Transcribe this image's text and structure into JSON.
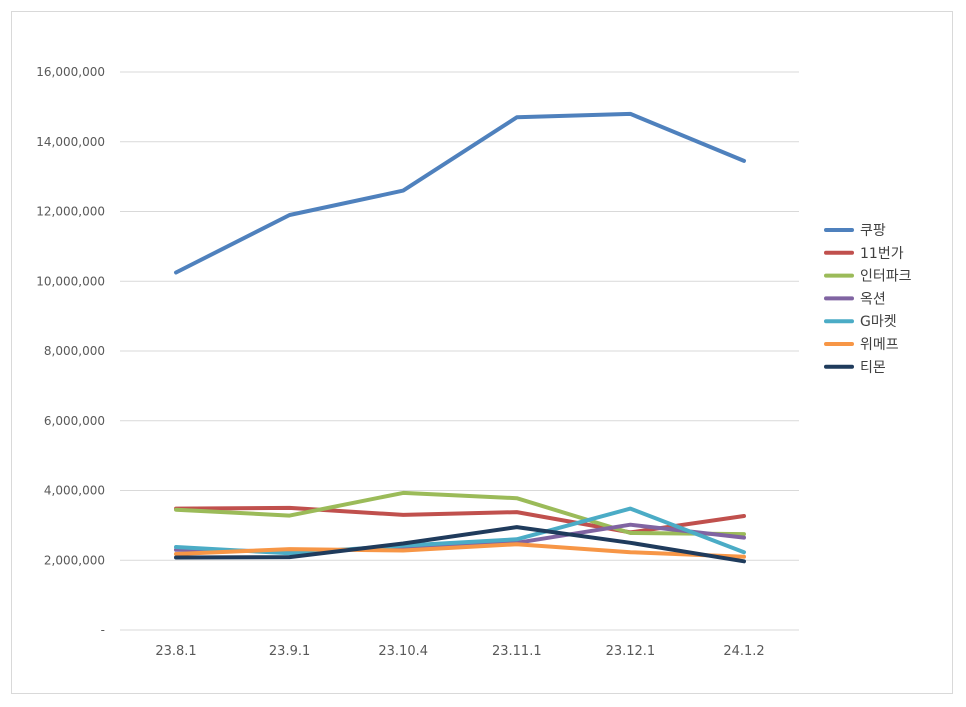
{
  "chart_data": {
    "type": "line",
    "categories": [
      "23.8.1",
      "23.9.1",
      "23.10.4",
      "23.11.1",
      "23.12.1",
      "24.1.2"
    ],
    "ylim": [
      0,
      16000000
    ],
    "yticks": [
      {
        "value": 0,
        "label": "-"
      },
      {
        "value": 2000000,
        "label": "2,000,000"
      },
      {
        "value": 4000000,
        "label": "4,000,000"
      },
      {
        "value": 6000000,
        "label": "6,000,000"
      },
      {
        "value": 8000000,
        "label": "8,000,000"
      },
      {
        "value": 10000000,
        "label": "10,000,000"
      },
      {
        "value": 12000000,
        "label": "12,000,000"
      },
      {
        "value": 14000000,
        "label": "14,000,000"
      },
      {
        "value": 16000000,
        "label": "16,000,000"
      }
    ],
    "grid": true,
    "legend_position": "right",
    "series": [
      {
        "name": "쿠팡",
        "color": "#4F81BD",
        "values": [
          10250000,
          11900000,
          12600000,
          14700000,
          14800000,
          13450000
        ]
      },
      {
        "name": "11번가",
        "color": "#C0504D",
        "values": [
          3480000,
          3500000,
          3300000,
          3380000,
          2800000,
          3270000
        ]
      },
      {
        "name": "인터파크",
        "color": "#9BBB59",
        "values": [
          3450000,
          3280000,
          3930000,
          3780000,
          2780000,
          2750000
        ]
      },
      {
        "name": "옥션",
        "color": "#8064A2",
        "values": [
          2300000,
          2250000,
          2350000,
          2500000,
          3020000,
          2650000
        ]
      },
      {
        "name": "G마켓",
        "color": "#4BACC6",
        "values": [
          2380000,
          2200000,
          2420000,
          2600000,
          3480000,
          2230000
        ]
      },
      {
        "name": "위메프",
        "color": "#F79646",
        "values": [
          2180000,
          2320000,
          2280000,
          2460000,
          2230000,
          2100000
        ]
      },
      {
        "name": "티몬",
        "color": "#1F3B5C",
        "values": [
          2080000,
          2090000,
          2480000,
          2950000,
          2500000,
          1970000
        ]
      }
    ]
  }
}
